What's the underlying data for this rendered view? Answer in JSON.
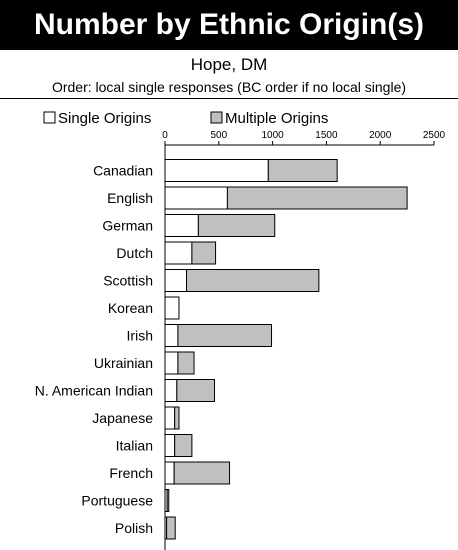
{
  "header": {
    "title": "Number by Ethnic Origin(s)",
    "subtitle": "Hope, DM",
    "order_note": "Order: local single responses (BC order if no local single)"
  },
  "colors": {
    "title_background": "#000000",
    "title_text": "#ffffff",
    "single_fill": "#ffffff",
    "multiple_fill": "#c0c0c0",
    "outline": "#000000"
  },
  "chart_data": {
    "type": "bar",
    "orientation": "horizontal",
    "stacked": true,
    "categories": [
      "Canadian",
      "English",
      "German",
      "Dutch",
      "Scottish",
      "Korean",
      "Irish",
      "Ukrainian",
      "N. American Indian",
      "Japanese",
      "Italian",
      "French",
      "Portuguese",
      "Polish"
    ],
    "series": [
      {
        "name": "Single Origins",
        "values": [
          960,
          580,
          310,
          250,
          200,
          130,
          120,
          120,
          110,
          90,
          90,
          85,
          20,
          15
        ]
      },
      {
        "name": "Multiple Origins",
        "values": [
          640,
          1670,
          710,
          220,
          1230,
          0,
          870,
          150,
          350,
          40,
          160,
          515,
          15,
          80
        ]
      }
    ],
    "xlim": [
      0,
      2500
    ],
    "xticks": [
      0,
      500,
      1000,
      1500,
      2000,
      2500
    ],
    "legend": "top",
    "grid": false
  }
}
